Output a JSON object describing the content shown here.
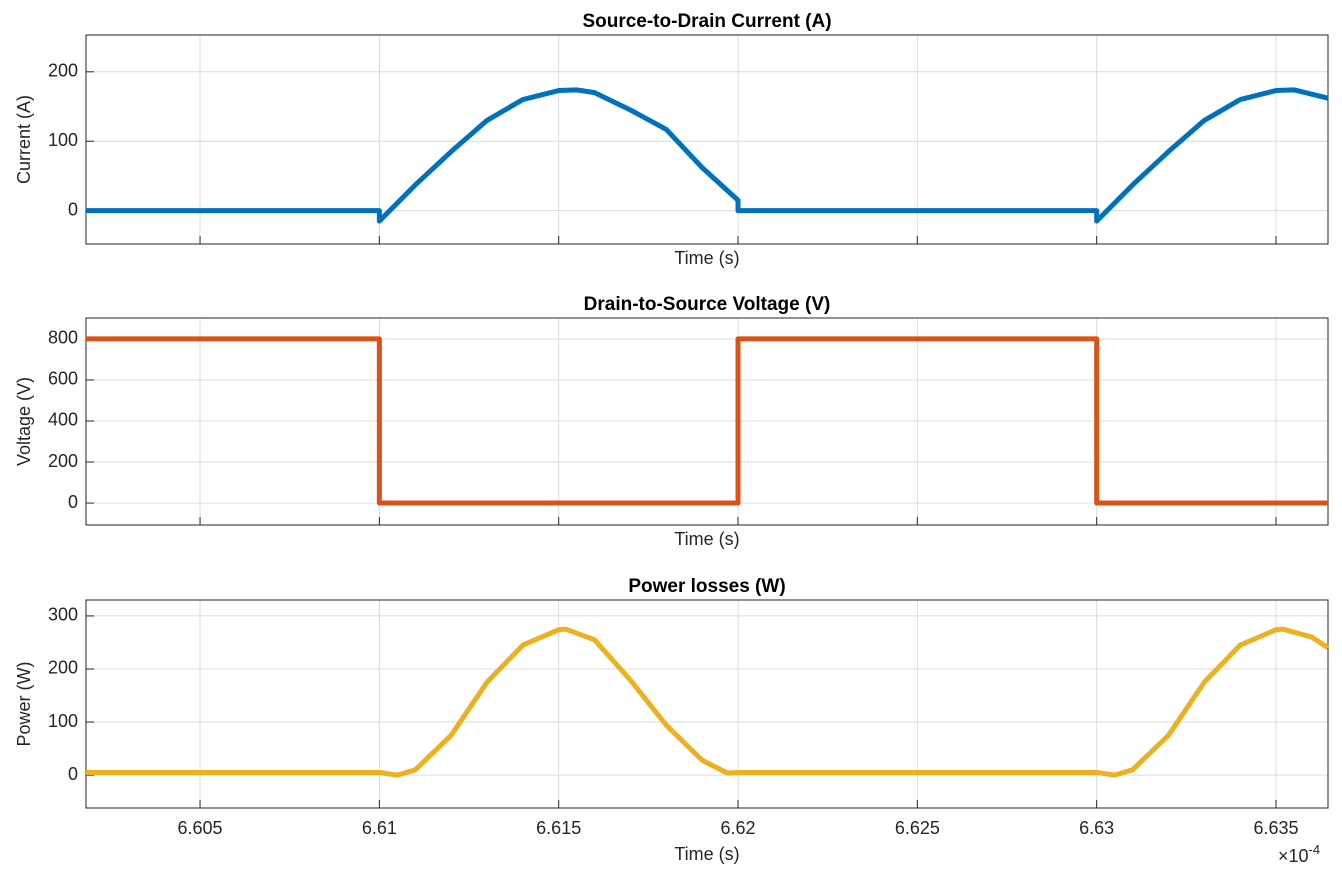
{
  "chart_data": [
    {
      "type": "line",
      "title": "Source-to-Drain Current (A)",
      "xlabel": "Time (s)",
      "ylabel": "Current (A)",
      "x": [
        6.60182,
        6.61,
        6.61,
        6.611,
        6.612,
        6.613,
        6.614,
        6.615,
        6.6155,
        6.616,
        6.617,
        6.618,
        6.619,
        6.62,
        6.62,
        6.63,
        6.63,
        6.631,
        6.632,
        6.633,
        6.634,
        6.635,
        6.6355,
        6.63645
      ],
      "values": [
        0,
        0,
        -15,
        37,
        85,
        130,
        160,
        173,
        174,
        170,
        145,
        117,
        62,
        15,
        0,
        0,
        -15,
        37,
        85,
        130,
        160,
        173,
        174,
        162
      ],
      "color": "#0072BD",
      "xlim": [
        6.60182,
        6.63645
      ],
      "ylim": [
        -48,
        253
      ],
      "xticks": [
        6.605,
        6.61,
        6.615,
        6.62,
        6.625,
        6.63,
        6.635
      ],
      "yticks": [
        0,
        100,
        200
      ],
      "grid": true,
      "xtick_labels": false
    },
    {
      "type": "line",
      "title": "Drain-to-Source Voltage (V)",
      "xlabel": "Time (s)",
      "ylabel": "Voltage (V)",
      "x": [
        6.60182,
        6.61,
        6.61,
        6.62,
        6.62,
        6.63,
        6.63,
        6.63645
      ],
      "values": [
        800,
        800,
        0,
        0,
        800,
        800,
        0,
        0
      ],
      "color": "#D95319",
      "xlim": [
        6.60182,
        6.63645
      ],
      "ylim": [
        -107,
        902
      ],
      "xticks": [
        6.605,
        6.61,
        6.615,
        6.62,
        6.625,
        6.63,
        6.635
      ],
      "yticks": [
        0,
        200,
        400,
        600,
        800
      ],
      "grid": true,
      "xtick_labels": false
    },
    {
      "type": "line",
      "title": "Power losses (W)",
      "xlabel": "Time (s)",
      "ylabel": "Power (W)",
      "x": [
        6.60182,
        6.61,
        6.6105,
        6.611,
        6.612,
        6.613,
        6.614,
        6.615,
        6.6152,
        6.616,
        6.617,
        6.618,
        6.619,
        6.6197,
        6.62,
        6.63,
        6.6305,
        6.631,
        6.632,
        6.633,
        6.634,
        6.635,
        6.6352,
        6.636,
        6.63645
      ],
      "values": [
        5,
        5,
        0,
        10,
        75,
        175,
        245,
        274,
        275,
        255,
        179,
        94,
        28,
        4,
        5,
        5,
        0,
        10,
        75,
        175,
        245,
        274,
        275,
        260,
        240
      ],
      "color": "#EDB120",
      "xlim": [
        6.60182,
        6.63645
      ],
      "ylim": [
        -62,
        330
      ],
      "xticks": [
        6.605,
        6.61,
        6.615,
        6.62,
        6.625,
        6.63,
        6.635
      ],
      "yticks": [
        0,
        100,
        200,
        300
      ],
      "grid": true,
      "xtick_labels": true,
      "x_exponent": {
        "base": "×10",
        "power": "-4"
      }
    }
  ]
}
